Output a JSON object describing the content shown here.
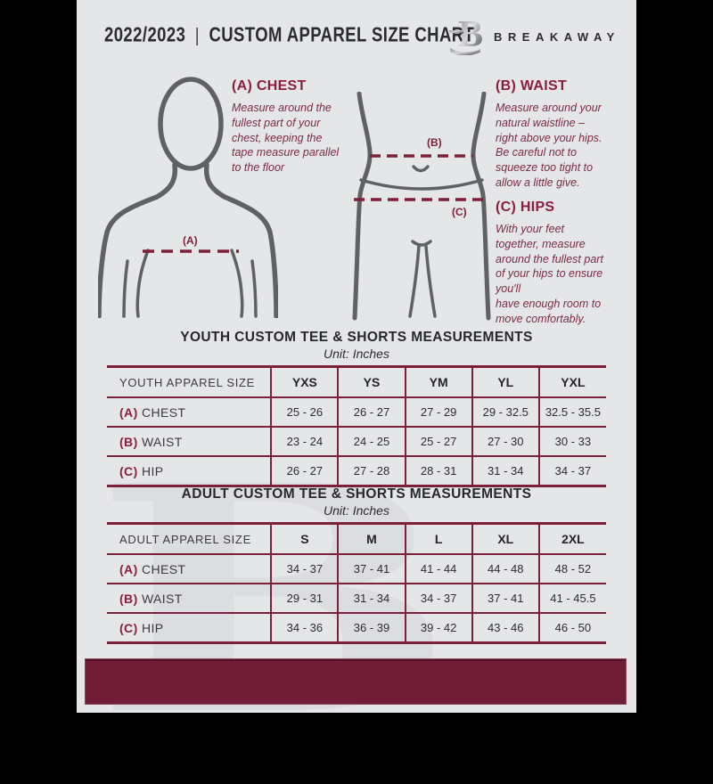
{
  "header": {
    "year": "2022/2023",
    "divider": "|",
    "title": "CUSTOM APPAREL SIZE CHART",
    "brand": "BREAKAWAY",
    "logo_letter": "B"
  },
  "instructions": {
    "chest": {
      "heading": "(A) CHEST",
      "body": "Measure around the\nfullest part of your\nchest, keeping the\ntape measure parallel\nto the floor"
    },
    "waist": {
      "heading": "(B) WAIST",
      "body": "Measure around your\nnatural waistline –\nright above your hips.\nBe careful not to\nsqueeze too tight to\nallow a little give."
    },
    "hips": {
      "heading": "(C) HIPS",
      "body": "With your feet\ntogether, measure\naround the fullest part\nof your hips to ensure\nyou'll\nhave enough room to\nmove comfortably."
    }
  },
  "figure_labels": {
    "chest": "(A)",
    "waist": "(B)",
    "hips": "(C)"
  },
  "youth_table": {
    "title": "YOUTH CUSTOM TEE & SHORTS MEASUREMENTS",
    "subtitle": "Unit: Inches",
    "header": [
      "YOUTH APPAREL SIZE",
      "YXS",
      "YS",
      "YM",
      "YL",
      "YXL"
    ],
    "rows": [
      {
        "prefix": "(A)",
        "label": "CHEST",
        "values": [
          "25 - 26",
          "26 - 27",
          "27 - 29",
          "29 - 32.5",
          "32.5 - 35.5"
        ]
      },
      {
        "prefix": "(B)",
        "label": "WAIST",
        "values": [
          "23 - 24",
          "24 - 25",
          "25 - 27",
          "27 - 30",
          "30 - 33"
        ]
      },
      {
        "prefix": "(C)",
        "label": "HIP",
        "values": [
          "26 - 27",
          "27 - 28",
          "28 - 31",
          "31 - 34",
          "34 - 37"
        ]
      }
    ]
  },
  "adult_table": {
    "title": "ADULT CUSTOM TEE & SHORTS MEASUREMENTS",
    "subtitle": "Unit: Inches",
    "header": [
      "ADULT APPAREL SIZE",
      "S",
      "M",
      "L",
      "XL",
      "2XL"
    ],
    "rows": [
      {
        "prefix": "(A)",
        "label": "CHEST",
        "values": [
          "34 - 37",
          "37 - 41",
          "41 - 44",
          "44 - 48",
          "48 - 52"
        ]
      },
      {
        "prefix": "(B)",
        "label": "WAIST",
        "values": [
          "29 - 31",
          "31 - 34",
          "34 - 37",
          "37 - 41",
          "41 - 45.5"
        ]
      },
      {
        "prefix": "(C)",
        "label": "HIP",
        "values": [
          "34 - 36",
          "36 - 39",
          "39 - 42",
          "43 - 46",
          "46 - 50"
        ]
      }
    ]
  },
  "watermark_letter": "B",
  "colors": {
    "maroon": "#701d37",
    "maroon_text": "#7c2a47",
    "table_border": "#7b2038",
    "dark_text": "#2b2c2e",
    "figure_stroke": "#5f6164",
    "page_bg": "#e5e6e8",
    "side_bars": "#000000",
    "watermark": "#dcdde0"
  }
}
